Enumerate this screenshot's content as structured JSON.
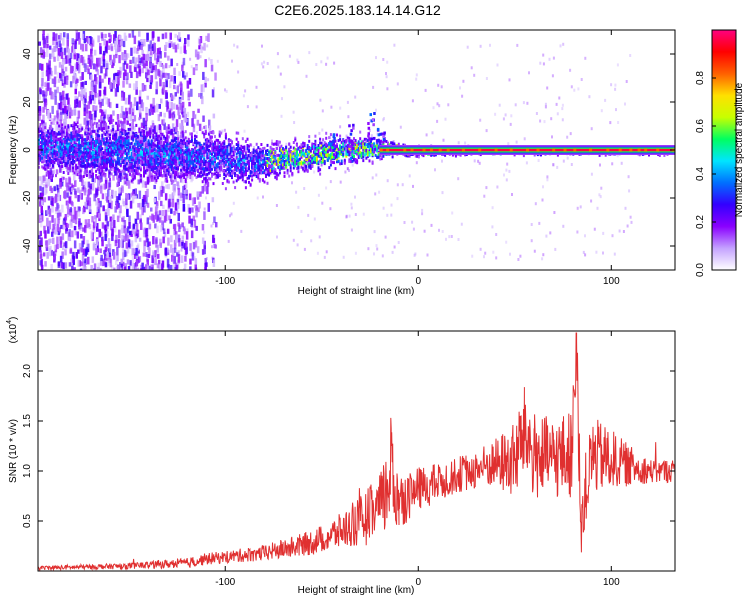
{
  "title": "C2E6.2025.183.14.14.G12",
  "chart_data": [
    {
      "type": "heatmap",
      "xlabel": "Height of straight line (km)",
      "ylabel": "Frequency (Hz)",
      "xlim": [
        -197,
        133
      ],
      "ylim": [
        -50,
        50
      ],
      "x_ticks": [
        -100,
        0,
        100
      ],
      "y_ticks": [
        -40,
        -20,
        0,
        20,
        40
      ],
      "colorbar": {
        "label": "Normalized spectral amplitude",
        "range": [
          0,
          1
        ],
        "ticks": [
          "0.0",
          "0.2",
          "0.4",
          "0.6",
          "0.8"
        ],
        "colors": [
          "#ffffff",
          "#c4a2ff",
          "#8a00ff",
          "#3300ff",
          "#0070ff",
          "#00e5ff",
          "#00ff60",
          "#c8ff00",
          "#ffe000",
          "#ff6000",
          "#ff0000",
          "#ff0080"
        ]
      },
      "features": {
        "scatter_region_x": [
          -197,
          -120
        ],
        "central_band": [
          {
            "x": -190,
            "y": 2,
            "width": 14
          },
          {
            "x": -150,
            "y": 0,
            "width": 16
          },
          {
            "x": -120,
            "y": -2,
            "width": 14
          },
          {
            "x": -100,
            "y": -3,
            "width": 14
          },
          {
            "x": -85,
            "y": -5,
            "width": 12
          },
          {
            "x": -70,
            "y": -3,
            "width": 10
          },
          {
            "x": -50,
            "y": -1,
            "width": 9
          },
          {
            "x": -30,
            "y": 1,
            "width": 8
          },
          {
            "x": -15,
            "y": 1,
            "width": 5
          },
          {
            "x": 0,
            "y": 0,
            "width": 3
          },
          {
            "x": 50,
            "y": 0,
            "width": 2
          },
          {
            "x": 100,
            "y": 0,
            "width": 2
          },
          {
            "x": 133,
            "y": 0,
            "width": 2
          }
        ],
        "dominant_line": {
          "x_from": -20,
          "x_to": 133,
          "y": 0,
          "amplitude": 0.95
        },
        "spikes": [
          {
            "x": -45,
            "y": 8
          },
          {
            "x": -35,
            "y": 11
          },
          {
            "x": -25,
            "y": 16
          },
          {
            "x": -20,
            "y": 10
          }
        ]
      }
    },
    {
      "type": "line",
      "xlabel": "Height of straight line (km)",
      "ylabel": "SNR (10 * v/v)",
      "yscale_note": "(x10",
      "yscale_exp": "4",
      "xlim": [
        -197,
        133
      ],
      "ylim": [
        0,
        2.4
      ],
      "x_ticks": [
        -100,
        0,
        100
      ],
      "y_ticks": [
        "0.5",
        "1.0",
        "1.5",
        "2.0"
      ],
      "line_color": "#e03030",
      "series": [
        {
          "x": [
            -197,
            -150,
            -120,
            -110,
            -100,
            -90,
            -80,
            -70,
            -60,
            -50,
            -40,
            -30,
            -20,
            -15,
            -14,
            -12,
            -10,
            -5,
            0,
            10,
            20,
            30,
            40,
            50,
            55,
            60,
            70,
            80,
            82,
            84,
            90,
            100,
            110,
            120,
            133
          ],
          "values": [
            0.03,
            0.05,
            0.08,
            0.12,
            0.14,
            0.16,
            0.18,
            0.22,
            0.26,
            0.32,
            0.4,
            0.5,
            0.62,
            0.85,
            1.25,
            0.75,
            0.7,
            0.75,
            0.82,
            0.88,
            0.96,
            1.02,
            1.08,
            1.1,
            1.4,
            1.15,
            1.12,
            1.18,
            2.3,
            0.5,
            1.15,
            1.12,
            1.05,
            1.0,
            1.0
          ],
          "noise": [
            0.02,
            0.03,
            0.05,
            0.06,
            0.06,
            0.07,
            0.08,
            0.1,
            0.12,
            0.14,
            0.18,
            0.25,
            0.35,
            0.45,
            0.4,
            0.35,
            0.3,
            0.25,
            0.22,
            0.2,
            0.18,
            0.2,
            0.25,
            0.4,
            0.45,
            0.45,
            0.4,
            0.45,
            0.5,
            0.4,
            0.4,
            0.3,
            0.2,
            0.12,
            0.12
          ]
        }
      ]
    }
  ]
}
